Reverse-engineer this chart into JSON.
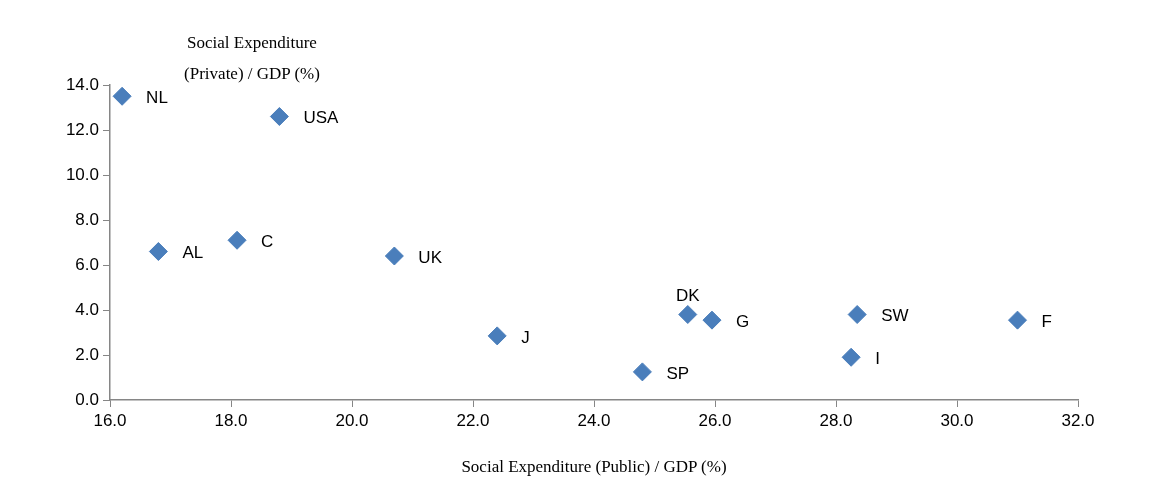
{
  "chart_data": {
    "type": "scatter",
    "xlabel": "Social Expenditure (Public) / GDP (%)",
    "ylabel": "Social Expenditure (Private) / GDP (%)",
    "x": [
      16.2,
      18.8,
      16.8,
      18.1,
      20.7,
      22.4,
      24.8,
      25.55,
      25.95,
      28.35,
      28.25,
      31.0
    ],
    "values": [
      13.5,
      12.6,
      6.6,
      7.1,
      6.4,
      2.85,
      1.25,
      3.8,
      3.55,
      3.8,
      1.9,
      3.55
    ],
    "color": "#4a7ebb",
    "marker": "diamond",
    "grid": false,
    "legend": false,
    "xlim": [
      16,
      32
    ],
    "xticks": [
      {
        "value": 16,
        "label": "16.0"
      },
      {
        "value": 18,
        "label": "18.0"
      },
      {
        "value": 20,
        "label": "20.0"
      },
      {
        "value": 22,
        "label": "22.0"
      },
      {
        "value": 24,
        "label": "24.0"
      },
      {
        "value": 26,
        "label": "26.0"
      },
      {
        "value": 28,
        "label": "28.0"
      },
      {
        "value": 30,
        "label": "30.0"
      },
      {
        "value": 32,
        "label": "32.0"
      }
    ],
    "ylim": [
      0,
      14
    ],
    "yticks": [
      {
        "value": 0,
        "label": "0.0"
      },
      {
        "value": 2,
        "label": "2.0"
      },
      {
        "value": 4,
        "label": "4.0"
      },
      {
        "value": 6,
        "label": "6.0"
      },
      {
        "value": 8,
        "label": "8.0"
      },
      {
        "value": 10,
        "label": "10.0"
      },
      {
        "value": 12,
        "label": "12.0"
      },
      {
        "value": 14,
        "label": "14.0"
      }
    ],
    "annotations": [
      {
        "text": "NL",
        "x": 16.2,
        "y": 13.5
      },
      {
        "text": "USA",
        "x": 18.8,
        "y": 12.6
      },
      {
        "text": "AL",
        "x": 16.8,
        "y": 6.6
      },
      {
        "text": "C",
        "x": 18.1,
        "y": 7.1
      },
      {
        "text": "UK",
        "x": 20.7,
        "y": 6.4
      },
      {
        "text": "J",
        "x": 22.4,
        "y": 2.85
      },
      {
        "text": "SP",
        "x": 24.8,
        "y": 1.25
      },
      {
        "text": "DK",
        "x": 25.55,
        "y": 3.8
      },
      {
        "text": "G",
        "x": 25.95,
        "y": 3.55
      },
      {
        "text": "SW",
        "x": 28.35,
        "y": 3.8
      },
      {
        "text": "I",
        "x": 28.25,
        "y": 1.9
      },
      {
        "text": "F",
        "x": 31.0,
        "y": 3.55
      }
    ]
  }
}
